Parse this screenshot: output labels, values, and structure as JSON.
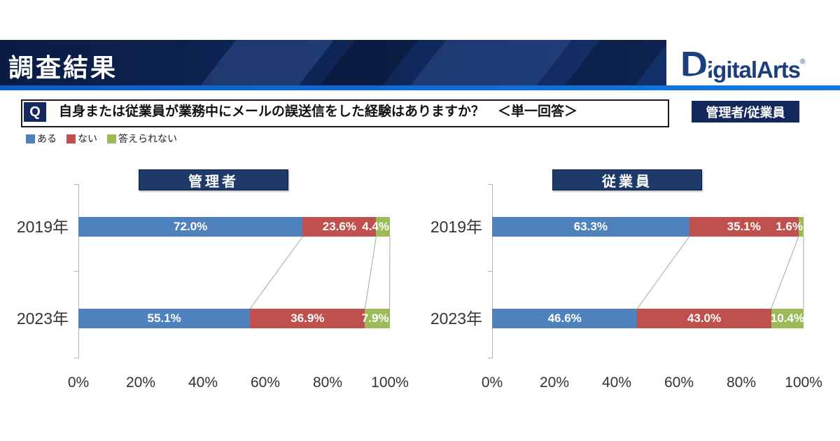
{
  "header": {
    "title": "調査結果",
    "logo": {
      "text": "DigitalArts",
      "reg": "®"
    },
    "colors": {
      "navy": "#0d2150",
      "accent_line": "#0a66cf"
    }
  },
  "question": {
    "q_label": "Q",
    "text": "自身または従業員が業務中にメールの誤送信をした経験はありますか？　＜単一回答＞",
    "badge": "管理者/従業員"
  },
  "legend": [
    {
      "label": "ある",
      "color": "#4F81BD"
    },
    {
      "label": "ない",
      "color": "#C0504D"
    },
    {
      "label": "答えられない",
      "color": "#9BBB59"
    }
  ],
  "chart_data": {
    "type": "bar",
    "orientation": "horizontal_stacked",
    "xlim": [
      0,
      100
    ],
    "x_ticks": [
      "0%",
      "20%",
      "40%",
      "60%",
      "80%",
      "100%"
    ],
    "grid": false,
    "legend_position": "top-left",
    "series_labels": [
      "ある",
      "ない",
      "答えられない"
    ],
    "series_colors": [
      "#4F81BD",
      "#C0504D",
      "#9BBB59"
    ],
    "charts": [
      {
        "title": "管理者",
        "rows": [
          {
            "category": "2019年",
            "values": [
              72.0,
              23.6,
              4.4
            ],
            "labels": [
              "72.0%",
              "23.6%",
              "4.4%"
            ]
          },
          {
            "category": "2023年",
            "values": [
              55.1,
              36.9,
              7.9
            ],
            "labels": [
              "55.1%",
              "36.9%",
              "7.9%"
            ]
          }
        ]
      },
      {
        "title": "従業員",
        "rows": [
          {
            "category": "2019年",
            "values": [
              63.3,
              35.1,
              1.6
            ],
            "labels": [
              "63.3%",
              "35.1%",
              "1.6%"
            ]
          },
          {
            "category": "2023年",
            "values": [
              46.6,
              43.0,
              10.4
            ],
            "labels": [
              "46.6%",
              "43.0%",
              "10.4%"
            ]
          }
        ]
      }
    ]
  }
}
